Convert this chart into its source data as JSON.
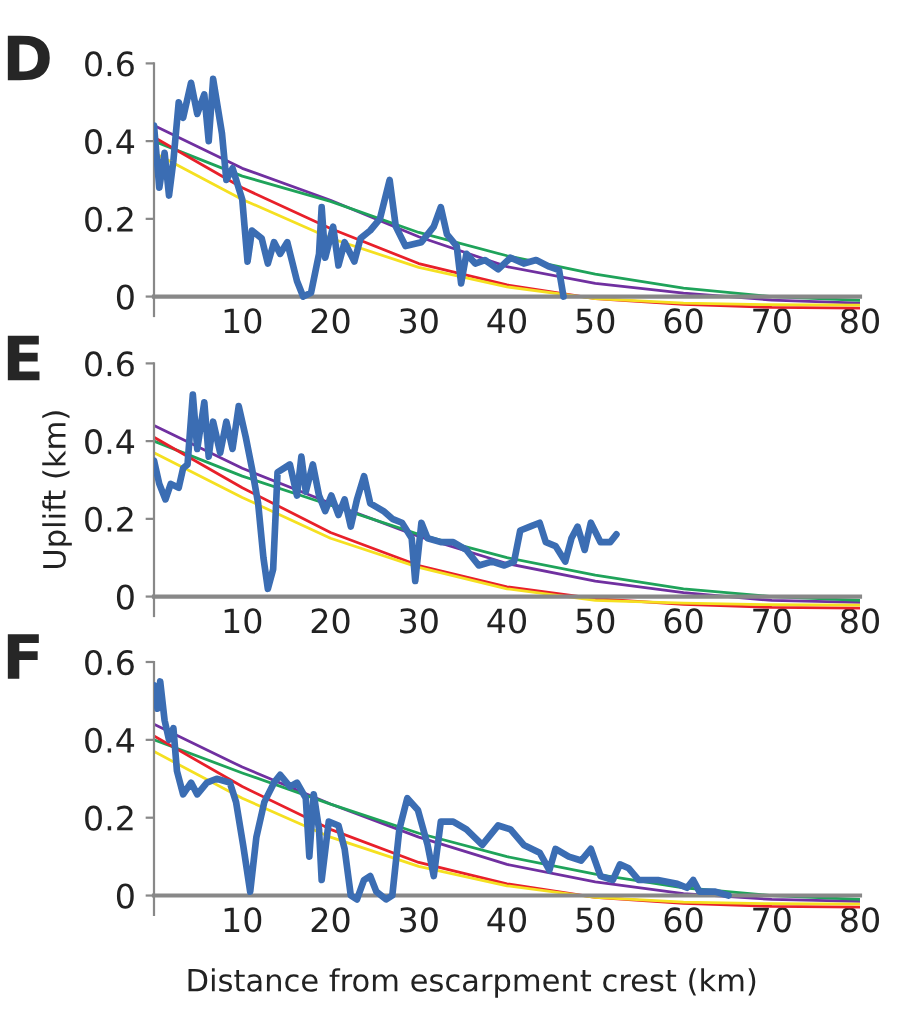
{
  "chart_data": [
    {
      "type": "line",
      "title": "D",
      "xlim": [
        0,
        80
      ],
      "xticks": [
        10,
        20,
        30,
        40,
        50,
        60,
        70,
        80
      ],
      "ylim": [
        -0.05,
        0.6
      ],
      "yticks": [
        0,
        0.2,
        0.4,
        0.6
      ],
      "grid": false,
      "legend": false,
      "series": [
        {
          "color": "#3b6db3",
          "x": [
            0,
            0.6,
            1.2,
            1.7,
            2.2,
            2.8,
            3.3,
            4.2,
            4.9,
            5.7,
            6.2,
            6.7,
            7.7,
            8.2,
            8.9,
            10,
            10.6,
            11.1,
            12.2,
            12.9,
            13.6,
            14.3,
            15.1,
            16.2,
            16.9,
            17.8,
            18.7,
            19,
            19.4,
            20.3,
            20.9,
            21.6,
            22.7,
            23.4,
            24.5,
            25.6,
            26.7,
            27.4,
            28.5,
            30.3,
            31.7,
            32.5,
            33.2,
            34.3,
            34.8,
            35.4,
            36.4,
            37.5,
            39,
            40.4,
            41.9,
            43.3,
            44.8,
            45.9,
            46.4
          ],
          "values": [
            0.44,
            0.28,
            0.37,
            0.26,
            0.35,
            0.5,
            0.46,
            0.55,
            0.47,
            0.52,
            0.4,
            0.56,
            0.42,
            0.3,
            0.33,
            0.25,
            0.09,
            0.17,
            0.15,
            0.085,
            0.14,
            0.11,
            0.14,
            0.04,
            0.0,
            0.01,
            0.11,
            0.23,
            0.1,
            0.18,
            0.08,
            0.14,
            0.09,
            0.15,
            0.17,
            0.2,
            0.3,
            0.18,
            0.13,
            0.14,
            0.18,
            0.23,
            0.16,
            0.13,
            0.034,
            0.11,
            0.085,
            0.094,
            0.07,
            0.1,
            0.085,
            0.094,
            0.077,
            0.068,
            0.0
          ]
        },
        {
          "color": "#7030a0",
          "x": [
            0,
            10,
            20,
            30,
            40,
            50,
            60,
            70,
            80
          ],
          "values": [
            0.44,
            0.33,
            0.248,
            0.154,
            0.077,
            0.034,
            0.009,
            -0.009,
            -0.017
          ]
        },
        {
          "color": "#1fa35a",
          "x": [
            0,
            10,
            20,
            30,
            40,
            50,
            60,
            70,
            80
          ],
          "values": [
            0.4,
            0.31,
            0.245,
            0.165,
            0.105,
            0.058,
            0.022,
            0.0,
            -0.01
          ]
        },
        {
          "color": "#e8202a",
          "x": [
            0,
            10,
            20,
            30,
            40,
            50,
            60,
            70,
            80
          ],
          "values": [
            0.41,
            0.28,
            0.175,
            0.085,
            0.03,
            -0.005,
            -0.02,
            -0.028,
            -0.03
          ]
        },
        {
          "color": "#f5e020",
          "x": [
            0,
            10,
            20,
            30,
            40,
            50,
            60,
            70,
            80
          ],
          "values": [
            0.37,
            0.25,
            0.15,
            0.075,
            0.025,
            -0.005,
            -0.017,
            -0.021,
            -0.022
          ]
        }
      ]
    },
    {
      "type": "line",
      "title": "E",
      "ylabel": "Uplift (km)",
      "xlim": [
        0,
        80
      ],
      "xticks": [
        10,
        20,
        30,
        40,
        50,
        60,
        70,
        80
      ],
      "ylim": [
        -0.05,
        0.6
      ],
      "yticks": [
        0,
        0.2,
        0.4,
        0.6
      ],
      "grid": false,
      "legend": false,
      "series": [
        {
          "color": "#3b6db3",
          "x": [
            0,
            0.6,
            1.3,
            1.9,
            2.8,
            3.3,
            3.8,
            4.4,
            4.9,
            5.7,
            6.2,
            6.7,
            7.5,
            8.2,
            8.9,
            9.6,
            10.4,
            11.1,
            11.8,
            12.4,
            12.9,
            13.5,
            14,
            14.7,
            15.4,
            16.2,
            16.7,
            17.2,
            18,
            18.7,
            19.4,
            20.1,
            20.9,
            21.6,
            22.3,
            23,
            23.8,
            24.5,
            26,
            27,
            28.1,
            29.2,
            29.6,
            30.3,
            31,
            32.5,
            33.9,
            35.4,
            36.8,
            38.3,
            39.7,
            40.8,
            41.5,
            42.6,
            43.7,
            44.4,
            45.5,
            46.6,
            47.3,
            48,
            48.8,
            49.5,
            50.6,
            51.7,
            52.4
          ],
          "values": [
            0.35,
            0.29,
            0.25,
            0.29,
            0.28,
            0.33,
            0.34,
            0.52,
            0.38,
            0.5,
            0.36,
            0.45,
            0.37,
            0.45,
            0.38,
            0.49,
            0.41,
            0.33,
            0.24,
            0.1,
            0.02,
            0.07,
            0.32,
            0.33,
            0.34,
            0.26,
            0.36,
            0.27,
            0.34,
            0.26,
            0.22,
            0.26,
            0.21,
            0.25,
            0.18,
            0.25,
            0.31,
            0.24,
            0.22,
            0.2,
            0.19,
            0.15,
            0.04,
            0.19,
            0.15,
            0.14,
            0.14,
            0.12,
            0.08,
            0.09,
            0.08,
            0.09,
            0.17,
            0.18,
            0.19,
            0.14,
            0.13,
            0.09,
            0.15,
            0.18,
            0.12,
            0.19,
            0.14,
            0.14,
            0.16
          ]
        },
        {
          "color": "#7030a0",
          "x": [
            0,
            10,
            20,
            30,
            40,
            50,
            60,
            70,
            80
          ],
          "values": [
            0.44,
            0.33,
            0.24,
            0.155,
            0.085,
            0.04,
            0.01,
            -0.01,
            -0.015
          ]
        },
        {
          "color": "#1fa35a",
          "x": [
            0,
            10,
            20,
            30,
            40,
            50,
            60,
            70,
            80
          ],
          "values": [
            0.4,
            0.31,
            0.235,
            0.16,
            0.1,
            0.055,
            0.02,
            0.0,
            -0.01
          ]
        },
        {
          "color": "#e8202a",
          "x": [
            0,
            10,
            20,
            30,
            40,
            50,
            60,
            70,
            80
          ],
          "values": [
            0.41,
            0.28,
            0.165,
            0.08,
            0.025,
            -0.005,
            -0.02,
            -0.028,
            -0.03
          ]
        },
        {
          "color": "#f5e020",
          "x": [
            0,
            10,
            20,
            30,
            40,
            50,
            60,
            70,
            80
          ],
          "values": [
            0.37,
            0.255,
            0.15,
            0.075,
            0.02,
            -0.01,
            -0.017,
            -0.021,
            -0.022
          ]
        }
      ]
    },
    {
      "type": "line",
      "title": "F",
      "xlabel": "Distance from escarpment crest (km)",
      "xlim": [
        0,
        80
      ],
      "xticks": [
        10,
        20,
        30,
        40,
        50,
        60,
        70,
        80
      ],
      "ylim": [
        -0.05,
        0.6
      ],
      "yticks": [
        0,
        0.2,
        0.4,
        0.6
      ],
      "grid": false,
      "legend": false,
      "series": [
        {
          "color": "#3b6db3",
          "x": [
            0,
            0.4,
            0.7,
            1.2,
            1.7,
            2.2,
            2.6,
            3.3,
            4.2,
            4.9,
            6,
            7.1,
            8.6,
            9.3,
            10.1,
            10.9,
            11.6,
            12.5,
            13.6,
            14.3,
            15.4,
            16.2,
            17.2,
            17.6,
            18.1,
            18.7,
            19,
            19.8,
            20.9,
            21.6,
            22.3,
            23,
            23.8,
            24.5,
            25.2,
            26.3,
            27,
            27.8,
            28.7,
            29.9,
            31,
            31.7,
            32.5,
            33.9,
            35.4,
            37.2,
            39,
            40.4,
            41.9,
            43.7,
            44.8,
            45.5,
            47,
            48.4,
            49.5,
            50.6,
            52,
            52.8,
            53.8,
            54.9,
            57.1,
            59.3,
            60.4,
            61.1,
            61.8,
            63.6,
            65.1
          ],
          "values": [
            0.54,
            0.48,
            0.55,
            0.45,
            0.4,
            0.43,
            0.32,
            0.26,
            0.29,
            0.26,
            0.29,
            0.3,
            0.29,
            0.24,
            0.13,
            0.01,
            0.15,
            0.24,
            0.29,
            0.31,
            0.28,
            0.29,
            0.25,
            0.1,
            0.26,
            0.17,
            0.04,
            0.19,
            0.18,
            0.12,
            0.0,
            -0.01,
            0.04,
            0.05,
            0.01,
            -0.01,
            0.0,
            0.17,
            0.25,
            0.22,
            0.13,
            0.05,
            0.19,
            0.19,
            0.17,
            0.13,
            0.18,
            0.17,
            0.13,
            0.11,
            0.065,
            0.12,
            0.1,
            0.09,
            0.12,
            0.05,
            0.04,
            0.08,
            0.07,
            0.04,
            0.04,
            0.03,
            0.02,
            0.04,
            0.01,
            0.01,
            0.0
          ]
        },
        {
          "color": "#7030a0",
          "x": [
            0,
            10,
            20,
            30,
            40,
            50,
            60,
            70,
            80
          ],
          "values": [
            0.44,
            0.33,
            0.235,
            0.15,
            0.08,
            0.035,
            0.005,
            -0.01,
            -0.015
          ]
        },
        {
          "color": "#1fa35a",
          "x": [
            0,
            10,
            20,
            30,
            40,
            50,
            60,
            70,
            80
          ],
          "values": [
            0.4,
            0.315,
            0.235,
            0.16,
            0.1,
            0.055,
            0.02,
            0.0,
            -0.01
          ]
        },
        {
          "color": "#e8202a",
          "x": [
            0,
            10,
            20,
            30,
            40,
            50,
            60,
            70,
            80
          ],
          "values": [
            0.41,
            0.28,
            0.17,
            0.085,
            0.03,
            -0.005,
            -0.02,
            -0.028,
            -0.03
          ]
        },
        {
          "color": "#f5e020",
          "x": [
            0,
            10,
            20,
            30,
            40,
            50,
            60,
            70,
            80
          ],
          "values": [
            0.37,
            0.25,
            0.15,
            0.075,
            0.025,
            -0.005,
            -0.017,
            -0.021,
            -0.022
          ]
        }
      ]
    }
  ]
}
